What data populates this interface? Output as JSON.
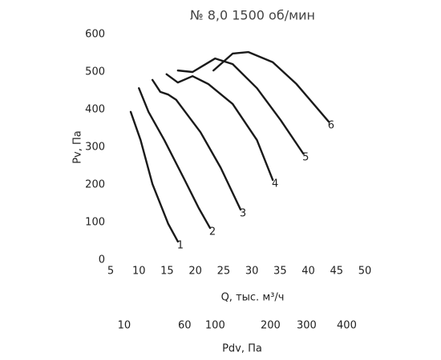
{
  "chart_data": {
    "type": "line",
    "title": "№ 8,0 1500 об/мин",
    "x_label": "Q, тыс. м³/ч",
    "y_label": "Pv, Па",
    "x2_label": "Pdv, Па",
    "xlim": [
      5,
      50
    ],
    "xticks": [
      5,
      10,
      15,
      20,
      25,
      30,
      35,
      40,
      45,
      50
    ],
    "ylim": [
      0,
      600
    ],
    "yticks": [
      0,
      100,
      200,
      300,
      400,
      500,
      600
    ],
    "x2ticks": [
      {
        "value": 7.4,
        "label": "10"
      },
      {
        "value": 18.1,
        "label": "60"
      },
      {
        "value": 23.5,
        "label": "100"
      },
      {
        "value": 33.3,
        "label": "200"
      },
      {
        "value": 39.7,
        "label": "300"
      },
      {
        "value": 46.8,
        "label": "400"
      }
    ],
    "grid": false,
    "series": [
      {
        "name": "1",
        "color": "#1a1a1a",
        "x": [
          8.55,
          10.3,
          12.4,
          15.2,
          16.9
        ],
        "values": [
          394,
          319,
          202,
          96,
          49
        ]
      },
      {
        "name": "2",
        "color": "#1a1a1a",
        "x": [
          10,
          11.7,
          14.5,
          18.1,
          20.6,
          22.6
        ],
        "values": [
          457,
          394,
          319,
          213,
          138,
          85
        ]
      },
      {
        "name": "3",
        "color": "#1a1a1a",
        "x": [
          12.4,
          13.8,
          15.2,
          16.6,
          20.9,
          24.5,
          28
        ],
        "values": [
          479,
          447,
          440,
          426,
          340,
          245,
          134
        ]
      },
      {
        "name": "4",
        "color": "#1a1a1a",
        "x": [
          14.9,
          16.9,
          19.5,
          22.3,
          26.6,
          30.9,
          33.7
        ],
        "values": [
          494,
          472,
          489,
          468,
          415,
          319,
          213
        ]
      },
      {
        "name": "5",
        "color": "#1a1a1a",
        "x": [
          16.9,
          19.5,
          23.5,
          26.6,
          30.9,
          35.1,
          39.1
        ],
        "values": [
          504,
          500,
          536,
          521,
          457,
          372,
          283
        ]
      },
      {
        "name": "6",
        "color": "#1a1a1a",
        "x": [
          23.2,
          26.6,
          29.4,
          33.7,
          37.9,
          43.6
        ],
        "values": [
          504,
          549,
          553,
          526,
          468,
          368
        ]
      }
    ]
  }
}
